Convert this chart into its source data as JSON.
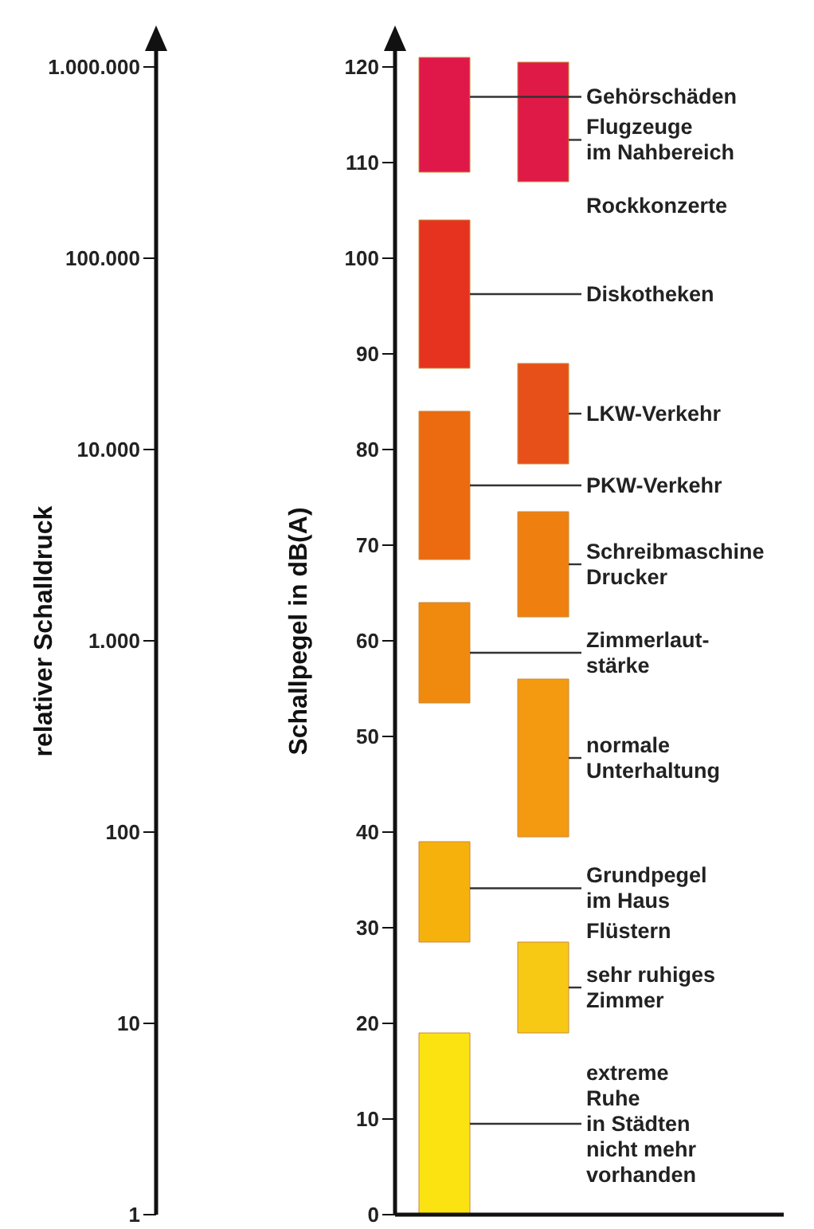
{
  "chart_data": {
    "type": "bar",
    "categories": [
      null,
      null
    ],
    "ylabel": "Schallpegel in dB(A)",
    "y2label": "relativer Schalldruck",
    "ylim": [
      0,
      122
    ],
    "yticks": [
      0,
      10,
      20,
      30,
      40,
      50,
      60,
      70,
      80,
      90,
      100,
      110,
      120
    ],
    "y2lim": [
      1,
      1258925
    ],
    "y2ticks": [
      1,
      10,
      100,
      {
        "value": 1000,
        "label": "1.000"
      },
      {
        "value": 10000,
        "label": "10.000"
      },
      {
        "value": 100000,
        "label": "100.000"
      },
      {
        "value": 1000000,
        "label": "1.000.000"
      }
    ],
    "log": "y2",
    "series": [
      {
        "name": "Gehörschäden",
        "color": "#e0184a",
        "values": [
          12,
          null
        ],
        "base": [
          109,
          null
        ]
      },
      {
        "name": "Flugzeuge\nim Nahbereich",
        "color": "#e01a46",
        "values": [
          null,
          12.5
        ],
        "base": [
          null,
          108
        ]
      },
      {
        "name": "Diskotheken",
        "color": "#e5331f",
        "values": [
          15.5,
          null
        ],
        "base": [
          88.5,
          null
        ]
      },
      {
        "name": "LKW-Verkehr",
        "color": "#e8501a",
        "values": [
          null,
          10.5
        ],
        "base": [
          null,
          78.5
        ]
      },
      {
        "name": "PKW-Verkehr",
        "color": "#ec6b10",
        "values": [
          15.5,
          null
        ],
        "base": [
          68.5,
          null
        ]
      },
      {
        "name": "Schreibmaschine\nDrucker",
        "color": "#ef8010",
        "values": [
          null,
          11
        ],
        "base": [
          null,
          62.5
        ]
      },
      {
        "name": "Zimmerlaut-\nstärke",
        "color": "#ef8a0f",
        "values": [
          10.5,
          null
        ],
        "base": [
          53.5,
          null
        ]
      },
      {
        "name": "normale\nUnterhaltung",
        "color": "#f49a10",
        "values": [
          null,
          16.5
        ],
        "base": [
          null,
          39.5
        ]
      },
      {
        "name": "Grundpegel\nim Haus",
        "color": "#f6b10d",
        "values": [
          10.5,
          null
        ],
        "base": [
          28.5,
          null
        ]
      },
      {
        "name": "sehr ruhiges\nZimmer",
        "color": "#f8c914",
        "values": [
          null,
          9.5
        ],
        "base": [
          null,
          19
        ]
      },
      {
        "name": "extreme\nRuhe\nin Städten\nnicht mehr\nvorhanden",
        "color": "#fbe311",
        "values": [
          19,
          null
        ],
        "base": [
          0,
          null
        ]
      }
    ],
    "annotations": [
      "Rockkonzerte",
      "Flüstern"
    ]
  }
}
